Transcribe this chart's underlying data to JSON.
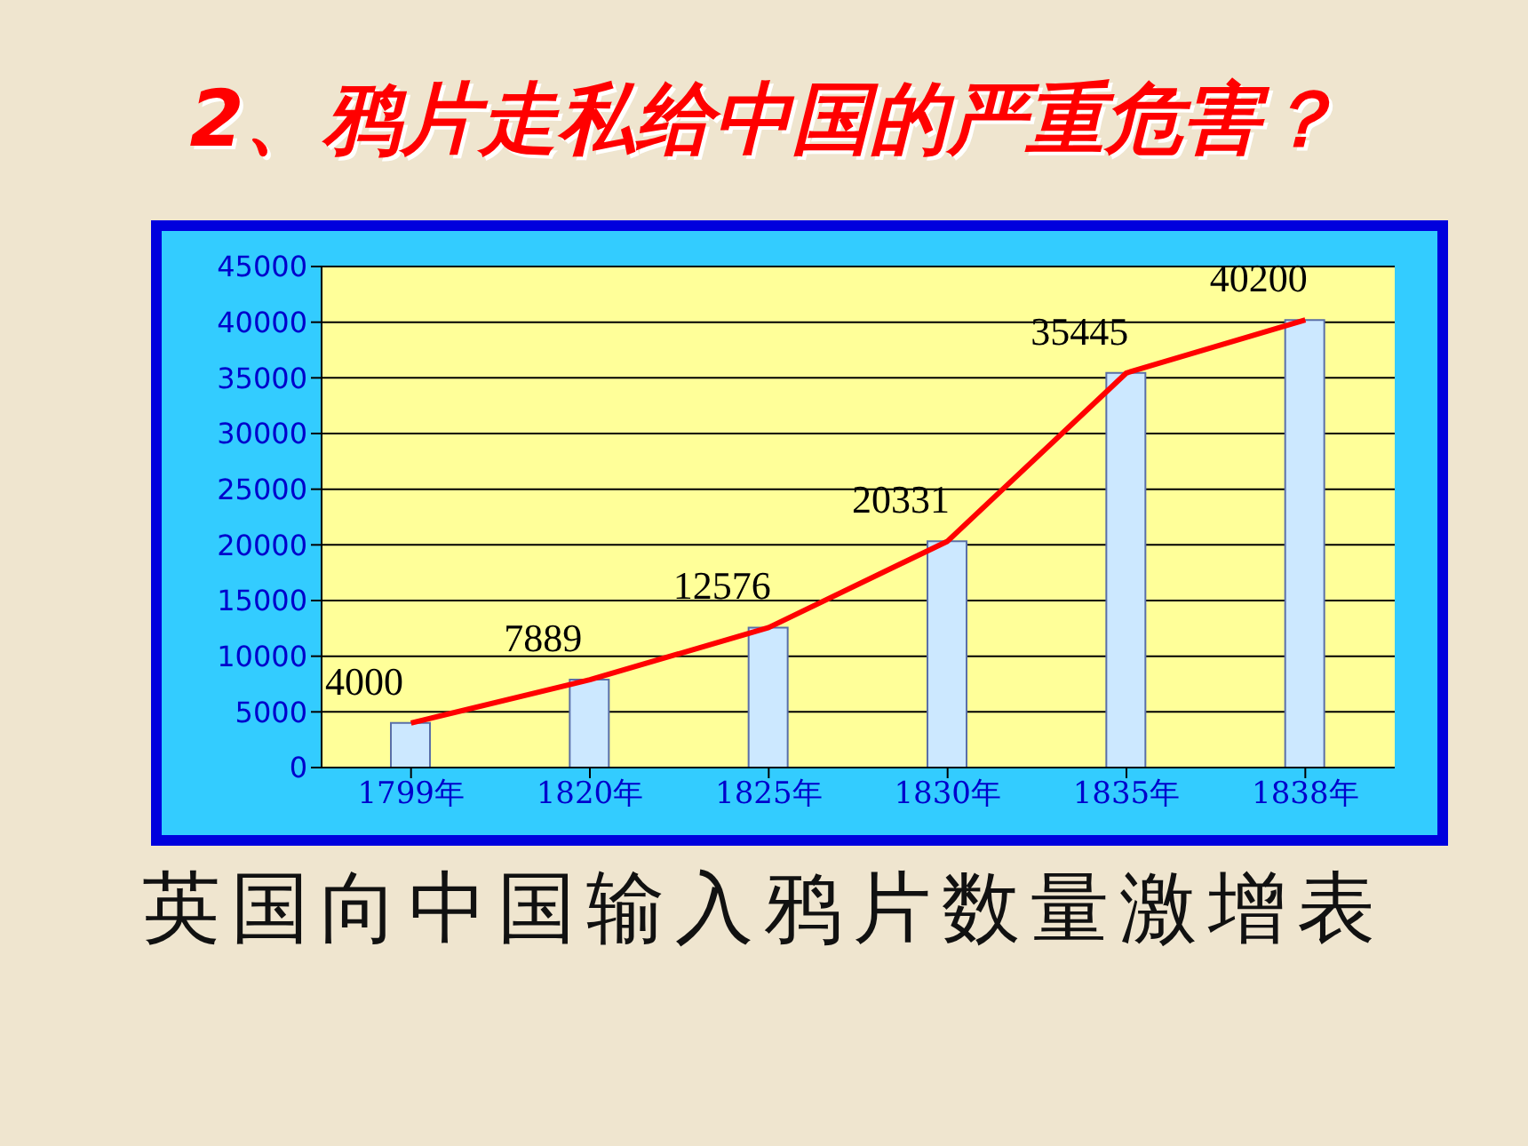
{
  "chart_data": {
    "type": "bar",
    "title": "2、鸦片走私给中国的严重危害？",
    "subtitle": "英国向中国输入鸦片数量激增表",
    "categories": [
      "1799年",
      "1820年",
      "1825年",
      "1830年",
      "1835年",
      "1838年"
    ],
    "series": [
      {
        "color": "#cce8ff",
        "values": [
          4000,
          7889,
          12576,
          20331,
          35445,
          40200
        ],
        "value_labels": [
          "4000",
          "7889",
          "12576",
          "20331",
          "35445",
          "40200"
        ]
      },
      {
        "type": "line",
        "color": "#ff0000",
        "values": [
          4000,
          7889,
          12576,
          20331,
          35445,
          40200
        ]
      }
    ],
    "ylim": [
      0,
      45000
    ],
    "yticks": [
      0,
      5000,
      10000,
      15000,
      20000,
      25000,
      30000,
      35000,
      40000,
      45000
    ],
    "grid": "y",
    "marker": "none",
    "line_style": "solid"
  }
}
